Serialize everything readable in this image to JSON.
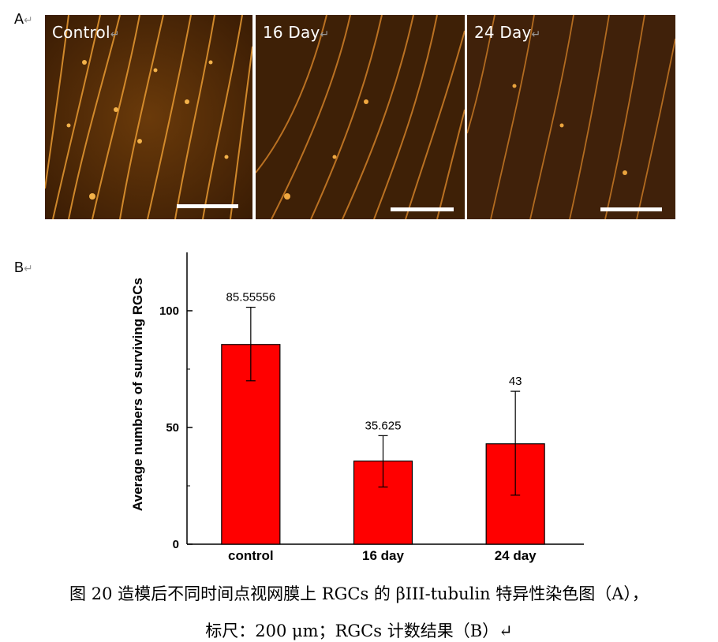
{
  "panel_a": {
    "letter": "A",
    "panels": [
      {
        "label": "Control"
      },
      {
        "label": "16 Day"
      },
      {
        "label": "24 Day"
      }
    ]
  },
  "panel_b": {
    "letter": "B"
  },
  "return_mark": "↵",
  "colors": {
    "bar_fill": "#ff0000",
    "bar_stroke": "#000000",
    "micro_bg": "#3a1d04",
    "fiber": "#e08a28"
  },
  "chart_data": {
    "type": "bar",
    "categories": [
      "control",
      "16 day",
      "24 day"
    ],
    "values": [
      85.55556,
      35.625,
      43
    ],
    "value_labels": [
      "85.55556",
      "35.625",
      "43"
    ],
    "error_low": [
      70,
      24.5,
      21
    ],
    "error_high": [
      101.5,
      46.5,
      65.5
    ],
    "ylabel": "Average numbers of surviving RGCs",
    "xlabel": "",
    "ylim": [
      0,
      125
    ],
    "yticks": [
      0,
      50,
      100
    ],
    "ytick_labels": [
      "0",
      "50",
      "100"
    ],
    "grid": false
  },
  "caption": {
    "line1": "图  20  造模后不同时间点视网膜上 RGCs 的 βIII-tubulin 特异性染色图（A），",
    "line2": "标尺：200 μm；RGCs 计数结果（B）↵"
  }
}
